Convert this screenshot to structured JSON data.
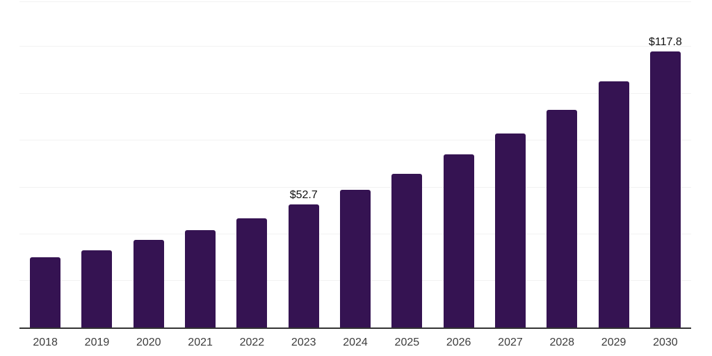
{
  "page": {
    "background": "#ffffff"
  },
  "chart_data": {
    "type": "bar",
    "title": "",
    "categories": [
      "2018",
      "2019",
      "2020",
      "2021",
      "2022",
      "2023",
      "2024",
      "2025",
      "2026",
      "2027",
      "2028",
      "2029",
      "2030"
    ],
    "values": [
      30.0,
      33.1,
      37.4,
      41.7,
      46.6,
      52.7,
      58.8,
      65.7,
      74.1,
      83.0,
      93.1,
      105.1,
      117.8
    ],
    "value_labels": [
      "",
      "",
      "",
      "",
      "",
      "$52.7",
      "",
      "",
      "",
      "",
      "",
      "",
      "$117.8"
    ],
    "labeled_points": {
      "2023": "$52.7",
      "2030": "$117.8"
    },
    "ylim": [
      0,
      139
    ],
    "gridline_values": [
      20,
      40,
      60,
      80,
      100,
      120
    ],
    "grid": "horizontal",
    "legend": "none",
    "bar_color": "#351352",
    "axis_line_color": "#333333",
    "gridline_color": "#f2f2f2",
    "tick_label_color": "#3c3c3c",
    "value_label_color": "#111111"
  }
}
